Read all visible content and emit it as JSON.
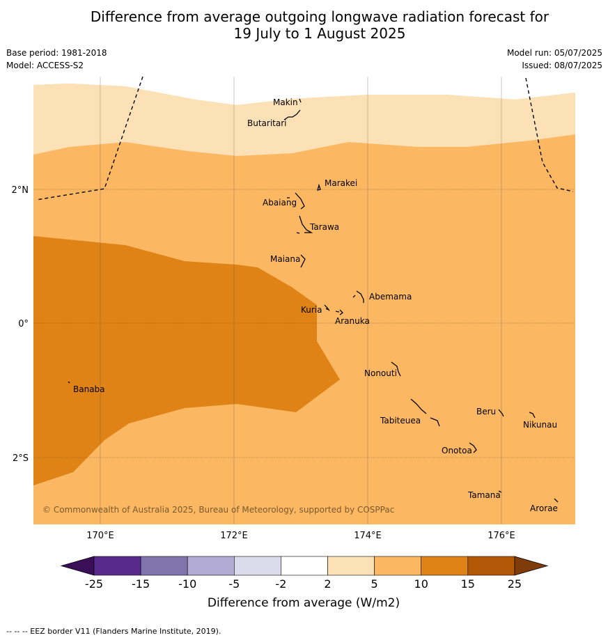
{
  "title_line1": "Difference from average outgoing longwave radiation forecast for",
  "title_line2": "19 July to 1 August 2025",
  "meta": {
    "base_period": "Base period: 1981-2018",
    "model": "Model: ACCESS-S2",
    "model_run": "Model run: 05/07/2025",
    "issued": "Issued: 08/07/2025"
  },
  "map": {
    "lon_labels": [
      "170°E",
      "172°E",
      "174°E",
      "176°E"
    ],
    "lat_labels": [
      "2°N",
      "0°",
      "2°S"
    ],
    "places": [
      "Makin",
      "Butaritari",
      "Marakei",
      "Abaiang",
      "Tarawa",
      "Maiana",
      "Abemama",
      "Kuria",
      "Aranuka",
      "Nonouti",
      "Banaba",
      "Beru",
      "Nikunau",
      "Tabiteuea",
      "Onotoa",
      "Tamana",
      "Arorae"
    ],
    "copyright": "© Commonwealth of Australia 2025, Bureau of Meteorology, supported by COSPPac",
    "fill_colors": {
      "2_to_5": "#fde1b6",
      "5_to_10": "#fbb762",
      "10_to_15": "#e08316"
    }
  },
  "colorbar": {
    "ticks": [
      "-25",
      "-15",
      "-10",
      "-5",
      "-2",
      "2",
      "5",
      "10",
      "15",
      "25"
    ],
    "colors": [
      "#3b0f58",
      "#582a8a",
      "#8074ad",
      "#b1aad2",
      "#dcdbec",
      "#ffffff",
      "#fde1b6",
      "#fbb762",
      "#e08316",
      "#b35807",
      "#7f3c0a"
    ],
    "label": "Difference from average (W/m2)"
  },
  "footnote": "--  --  -- EEZ border V11 (Flanders Marine Institute, 2019)."
}
